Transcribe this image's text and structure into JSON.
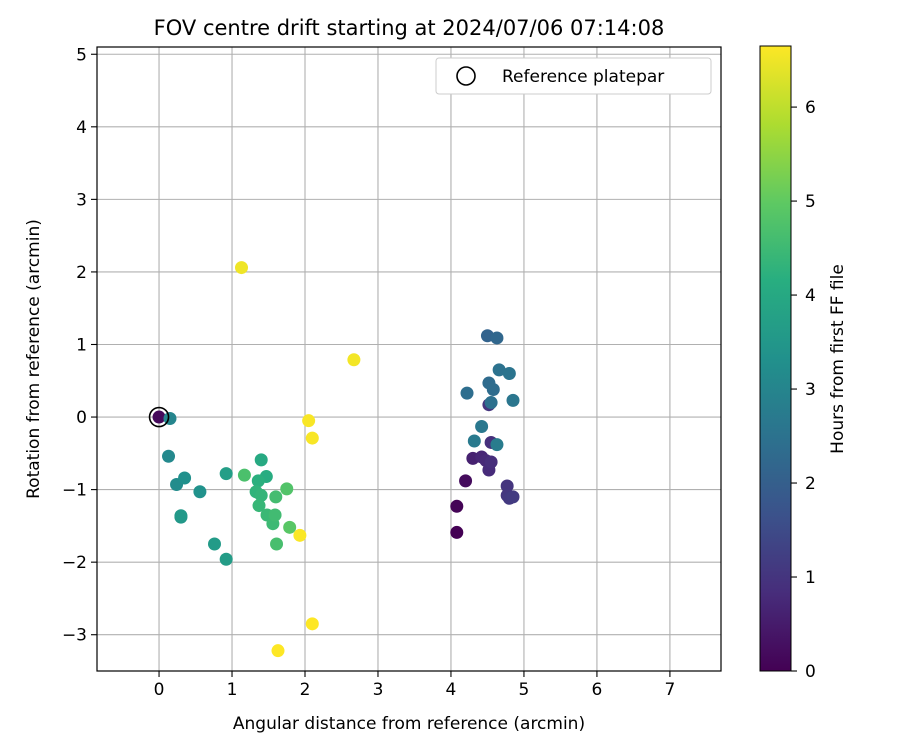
{
  "chart_data": {
    "type": "scatter",
    "title": "FOV centre drift starting at 2024/07/06 07:14:08",
    "xlabel": "Angular distance from reference (arcmin)",
    "ylabel": "Rotation from reference (arcmin)",
    "xlim": [
      -0.85,
      7.7
    ],
    "ylim": [
      -3.5,
      5.1
    ],
    "x_ticks": [
      "0",
      "1",
      "2",
      "3",
      "4",
      "5",
      "6",
      "7"
    ],
    "y_ticks": [
      "−3",
      "−2",
      "−1",
      "0",
      "1",
      "2",
      "3",
      "4",
      "5"
    ],
    "grid": true,
    "legend": {
      "label": "Reference platepar",
      "placement": "top-right"
    },
    "reference_point": {
      "x": 0,
      "y": 0
    },
    "colorbar": {
      "label": "Hours from first FF file",
      "range": [
        0,
        6.65
      ],
      "ticks": [
        "0",
        "1",
        "2",
        "3",
        "4",
        "5",
        "6"
      ],
      "colormap": "viridis"
    },
    "points": [
      {
        "x": 0.0,
        "y": 0.0,
        "c": 0.15
      },
      {
        "x": 4.08,
        "y": -1.59,
        "c": 0.0
      },
      {
        "x": 4.08,
        "y": -1.23,
        "c": 0.05
      },
      {
        "x": 4.2,
        "y": -0.88,
        "c": 0.2
      },
      {
        "x": 4.3,
        "y": -0.57,
        "c": 0.6
      },
      {
        "x": 4.42,
        "y": -0.55,
        "c": 0.7
      },
      {
        "x": 4.48,
        "y": -0.6,
        "c": 0.75
      },
      {
        "x": 4.52,
        "y": -0.73,
        "c": 0.8
      },
      {
        "x": 4.55,
        "y": -0.62,
        "c": 0.85
      },
      {
        "x": 4.55,
        "y": -0.35,
        "c": 0.9
      },
      {
        "x": 4.52,
        "y": 0.17,
        "c": 1.0
      },
      {
        "x": 4.77,
        "y": -0.95,
        "c": 1.0
      },
      {
        "x": 4.77,
        "y": -1.08,
        "c": 1.05
      },
      {
        "x": 4.8,
        "y": -1.12,
        "c": 1.1
      },
      {
        "x": 4.85,
        "y": -1.1,
        "c": 1.15
      },
      {
        "x": 4.5,
        "y": 1.12,
        "c": 2.1
      },
      {
        "x": 4.63,
        "y": 1.09,
        "c": 2.2
      },
      {
        "x": 4.52,
        "y": 0.47,
        "c": 2.3
      },
      {
        "x": 4.58,
        "y": 0.38,
        "c": 2.35
      },
      {
        "x": 4.22,
        "y": 0.33,
        "c": 2.4
      },
      {
        "x": 4.55,
        "y": 0.2,
        "c": 2.45
      },
      {
        "x": 4.66,
        "y": 0.65,
        "c": 2.5
      },
      {
        "x": 4.8,
        "y": 0.6,
        "c": 2.55
      },
      {
        "x": 4.85,
        "y": 0.23,
        "c": 2.6
      },
      {
        "x": 4.42,
        "y": -0.13,
        "c": 2.65
      },
      {
        "x": 4.32,
        "y": -0.33,
        "c": 2.7
      },
      {
        "x": 4.63,
        "y": -0.38,
        "c": 2.75
      },
      {
        "x": 0.15,
        "y": -0.02,
        "c": 3.0
      },
      {
        "x": 0.13,
        "y": -0.54,
        "c": 3.1
      },
      {
        "x": 0.24,
        "y": -0.93,
        "c": 3.2
      },
      {
        "x": 0.35,
        "y": -0.84,
        "c": 3.3
      },
      {
        "x": 0.56,
        "y": -1.03,
        "c": 3.35
      },
      {
        "x": 0.3,
        "y": -1.38,
        "c": 3.5
      },
      {
        "x": 0.3,
        "y": -1.36,
        "c": 3.55
      },
      {
        "x": 0.76,
        "y": -1.75,
        "c": 3.6
      },
      {
        "x": 0.92,
        "y": -1.96,
        "c": 3.65
      },
      {
        "x": 0.92,
        "y": -0.78,
        "c": 3.7
      },
      {
        "x": 1.4,
        "y": -0.59,
        "c": 4.0
      },
      {
        "x": 1.47,
        "y": -0.82,
        "c": 4.1
      },
      {
        "x": 1.36,
        "y": -0.88,
        "c": 4.2
      },
      {
        "x": 1.33,
        "y": -1.03,
        "c": 4.3
      },
      {
        "x": 1.4,
        "y": -1.08,
        "c": 4.35
      },
      {
        "x": 1.37,
        "y": -1.22,
        "c": 4.4
      },
      {
        "x": 1.48,
        "y": -1.35,
        "c": 4.45
      },
      {
        "x": 1.56,
        "y": -1.47,
        "c": 4.5
      },
      {
        "x": 1.59,
        "y": -1.35,
        "c": 4.55
      },
      {
        "x": 1.6,
        "y": -1.1,
        "c": 4.6
      },
      {
        "x": 1.61,
        "y": -1.75,
        "c": 4.65
      },
      {
        "x": 1.17,
        "y": -0.8,
        "c": 4.7
      },
      {
        "x": 1.75,
        "y": -0.99,
        "c": 4.8
      },
      {
        "x": 1.79,
        "y": -1.52,
        "c": 4.9
      },
      {
        "x": 1.13,
        "y": 2.06,
        "c": 6.5
      },
      {
        "x": 2.67,
        "y": 0.79,
        "c": 6.55
      },
      {
        "x": 2.05,
        "y": -0.05,
        "c": 6.6
      },
      {
        "x": 2.1,
        "y": -0.29,
        "c": 6.6
      },
      {
        "x": 1.93,
        "y": -1.63,
        "c": 6.62
      },
      {
        "x": 2.1,
        "y": -2.85,
        "c": 6.65
      },
      {
        "x": 1.63,
        "y": -3.22,
        "c": 6.65
      }
    ]
  }
}
